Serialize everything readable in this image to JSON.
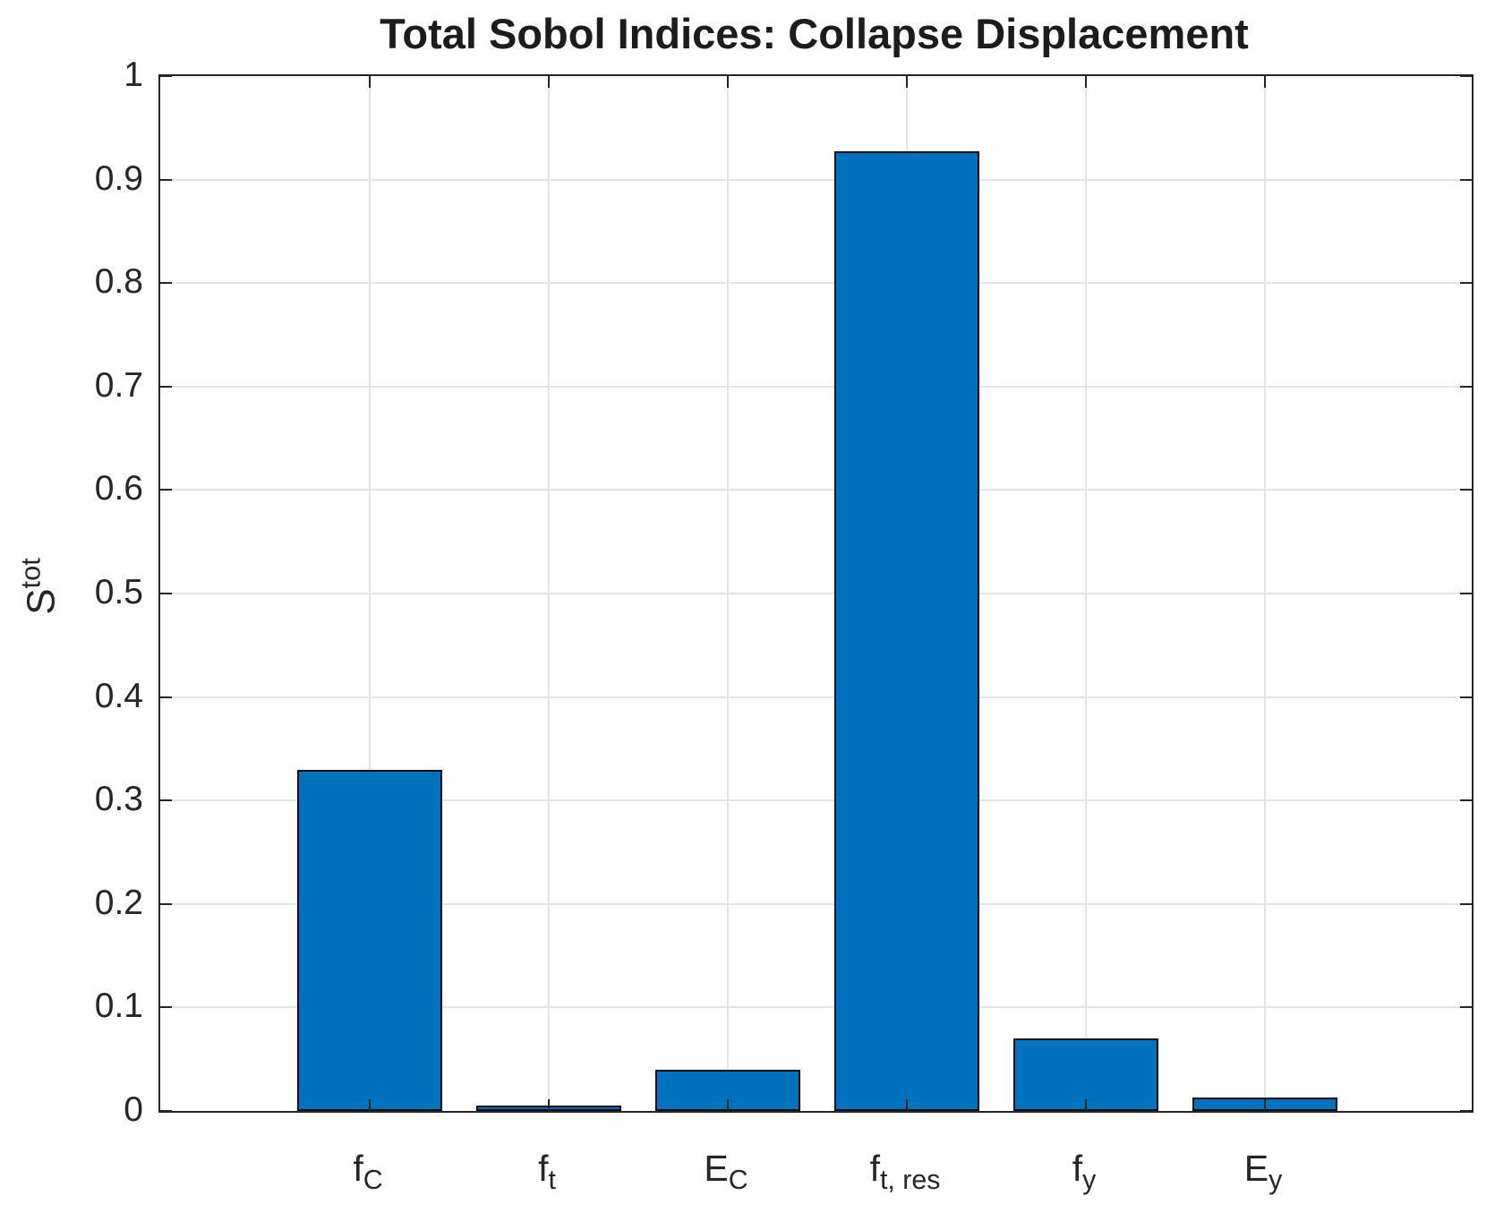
{
  "chart_data": {
    "type": "bar",
    "title": "Total Sobol Indices: Collapse Displacement",
    "ylabel": {
      "base": "S",
      "sup": "tot"
    },
    "categories": [
      {
        "base": "f",
        "sub": "C"
      },
      {
        "base": "f",
        "sub": "t"
      },
      {
        "base": "E",
        "sub": "C"
      },
      {
        "base": "f",
        "sub": "t, res"
      },
      {
        "base": "f",
        "sub": "y"
      },
      {
        "base": "E",
        "sub": "y"
      }
    ],
    "values": [
      0.33,
      0.005,
      0.04,
      0.927,
      0.07,
      0.013
    ],
    "xlabel": "",
    "ylim": [
      0,
      1
    ],
    "yticks": [
      0,
      0.1,
      0.2,
      0.3,
      0.4,
      0.5,
      0.6,
      0.7,
      0.8,
      0.9,
      1
    ],
    "ytick_labels": [
      "0",
      "0.1",
      "0.2",
      "0.3",
      "0.4",
      "0.5",
      "0.6",
      "0.7",
      "0.8",
      "0.9",
      "1"
    ],
    "grid": "on",
    "legend": "none",
    "bar_color": "#0072BD",
    "bar_edge_color": "#0c0c12",
    "axis_color": "#262626",
    "grid_color": "#e4e4e4",
    "background_color": "#ffffff"
  }
}
